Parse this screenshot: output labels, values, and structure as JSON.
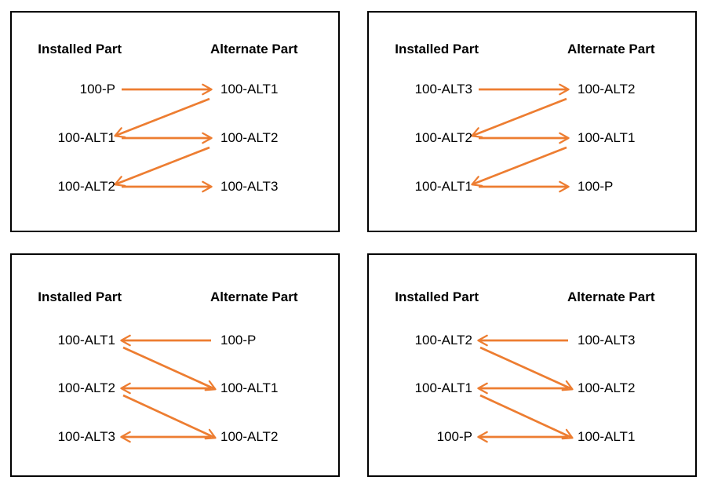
{
  "styles": {
    "arrow_color": "#ED7D31",
    "border_color": "#000000",
    "text_color": "#000000",
    "background": "#FFFFFF"
  },
  "panels": [
    {
      "position": "top-left",
      "header_left": "Installed Part",
      "header_right": "Alternate Part",
      "installed_parts": [
        "100-P",
        "100-ALT1",
        "100-ALT2"
      ],
      "alternate_parts": [
        "100-ALT1",
        "100-ALT2",
        "100-ALT3"
      ],
      "arrows": [
        {
          "from": [
            "left",
            0
          ],
          "to": [
            "right",
            0
          ]
        },
        {
          "from": [
            "right",
            0
          ],
          "to": [
            "left",
            1
          ]
        },
        {
          "from": [
            "left",
            1
          ],
          "to": [
            "right",
            1
          ]
        },
        {
          "from": [
            "right",
            1
          ],
          "to": [
            "left",
            2
          ]
        },
        {
          "from": [
            "left",
            2
          ],
          "to": [
            "right",
            2
          ]
        }
      ]
    },
    {
      "position": "top-right",
      "header_left": "Installed Part",
      "header_right": "Alternate Part",
      "installed_parts": [
        "100-ALT3",
        "100-ALT2",
        "100-ALT1"
      ],
      "alternate_parts": [
        "100-ALT2",
        "100-ALT1",
        "100-P"
      ],
      "arrows": [
        {
          "from": [
            "left",
            0
          ],
          "to": [
            "right",
            0
          ]
        },
        {
          "from": [
            "right",
            0
          ],
          "to": [
            "left",
            1
          ]
        },
        {
          "from": [
            "left",
            1
          ],
          "to": [
            "right",
            1
          ]
        },
        {
          "from": [
            "right",
            1
          ],
          "to": [
            "left",
            2
          ]
        },
        {
          "from": [
            "left",
            2
          ],
          "to": [
            "right",
            2
          ]
        }
      ]
    },
    {
      "position": "bottom-left",
      "header_left": "Installed Part",
      "header_right": "Alternate Part",
      "installed_parts": [
        "100-ALT1",
        "100-ALT2",
        "100-ALT3"
      ],
      "alternate_parts": [
        "100-P",
        "100-ALT1",
        "100-ALT2"
      ],
      "arrows": [
        {
          "from": [
            "right",
            0
          ],
          "to": [
            "left",
            0
          ]
        },
        {
          "from": [
            "left",
            0
          ],
          "to": [
            "right",
            1
          ]
        },
        {
          "from": [
            "right",
            1
          ],
          "to": [
            "left",
            1
          ]
        },
        {
          "from": [
            "left",
            1
          ],
          "to": [
            "right",
            2
          ]
        },
        {
          "from": [
            "right",
            2
          ],
          "to": [
            "left",
            2
          ]
        }
      ]
    },
    {
      "position": "bottom-right",
      "header_left": "Installed Part",
      "header_right": "Alternate Part",
      "installed_parts": [
        "100-ALT2",
        "100-ALT1",
        "100-P"
      ],
      "alternate_parts": [
        "100-ALT3",
        "100-ALT2",
        "100-ALT1"
      ],
      "arrows": [
        {
          "from": [
            "right",
            0
          ],
          "to": [
            "left",
            0
          ]
        },
        {
          "from": [
            "left",
            0
          ],
          "to": [
            "right",
            1
          ]
        },
        {
          "from": [
            "right",
            1
          ],
          "to": [
            "left",
            1
          ]
        },
        {
          "from": [
            "left",
            1
          ],
          "to": [
            "right",
            2
          ]
        },
        {
          "from": [
            "right",
            2
          ],
          "to": [
            "left",
            2
          ]
        }
      ]
    }
  ]
}
